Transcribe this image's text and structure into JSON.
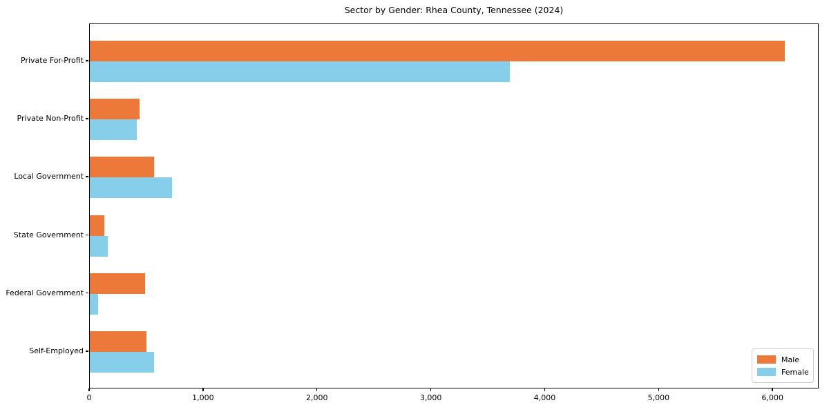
{
  "title": "Sector by Gender: Rhea County, Tennessee (2024)",
  "chart_data": {
    "type": "bar",
    "orientation": "horizontal",
    "title": "Sector by Gender: Rhea County, Tennessee (2024)",
    "categories": [
      "Private For-Profit",
      "Private Non-Profit",
      "Local Government",
      "State Government",
      "Federal Government",
      "Self-Employed"
    ],
    "series": [
      {
        "name": "Male",
        "color": "#EC7839",
        "values": [
          6100,
          435,
          565,
          125,
          485,
          495
        ]
      },
      {
        "name": "Female",
        "color": "#87CEEB",
        "values": [
          3690,
          410,
          720,
          155,
          75,
          565
        ]
      }
    ],
    "xlabel": "",
    "ylabel": "",
    "xlim": [
      0,
      6405
    ],
    "x_ticks": [
      0,
      1000,
      2000,
      3000,
      4000,
      5000,
      6000
    ],
    "x_tick_labels": [
      "0",
      "1,000",
      "2,000",
      "3,000",
      "4,000",
      "5,000",
      "6,000"
    ],
    "grid": false,
    "legend": {
      "position": "lower right",
      "entries": [
        "Male",
        "Female"
      ]
    },
    "colors": {
      "male": "#EC7839",
      "female": "#87CEEB",
      "spine": "#000000",
      "legend_border": "#cccccc"
    }
  }
}
